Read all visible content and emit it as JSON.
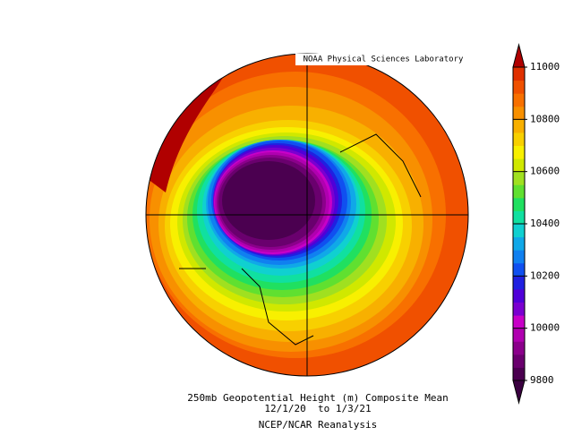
{
  "chart_data": {
    "type": "map",
    "title": "NOAA Physical Sciences Laboratory",
    "caption": [
      "250mb Geopotential Height (m) Composite Mean",
      "12/1/20  to 1/3/21",
      "NCEP/NCAR Reanalysis"
    ],
    "colorbar": {
      "lim": [
        9800,
        11000
      ],
      "ticks": [
        9800,
        10000,
        10200,
        10400,
        10600,
        10800,
        11000
      ],
      "under_color": "#3a0040",
      "over_color": "#b00000",
      "colors": [
        "#4b0050",
        "#6a006e",
        "#8b008b",
        "#b000b0",
        "#c800c8",
        "#7a00d0",
        "#5000d8",
        "#2020e0",
        "#1050f0",
        "#1080f0",
        "#10a8e8",
        "#10d0d0",
        "#10e0a0",
        "#20e060",
        "#60e030",
        "#a0e020",
        "#d0e800",
        "#f8f000",
        "#f8d000",
        "#f8b000",
        "#f89000",
        "#f87000",
        "#f05000",
        "#e03000"
      ]
    }
  }
}
